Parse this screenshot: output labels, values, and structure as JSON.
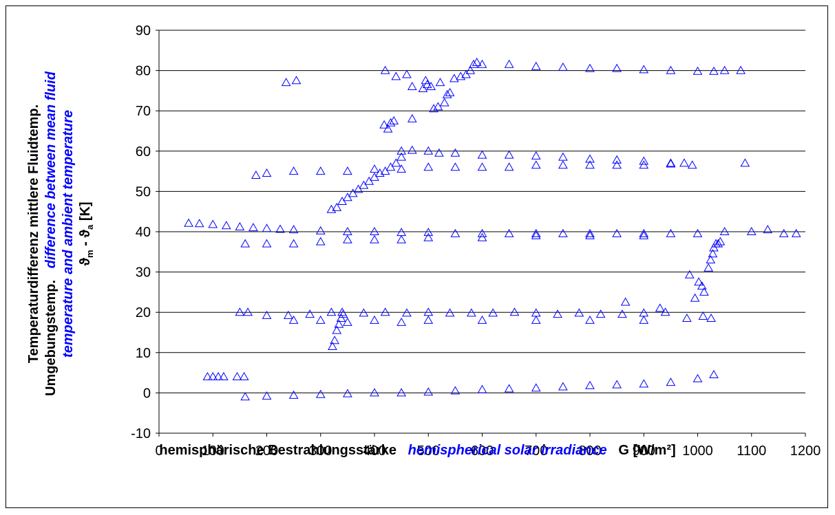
{
  "chart_data": {
    "type": "scatter",
    "xlabel_de": "hemisphärische Bestrahlungsstärke",
    "xlabel_en": "hemispherical solar irradiance",
    "xlabel_unit": "G [W/m²]",
    "ylabel_de_line1": "Temperaturdifferenz mittlere Fluidtemp.",
    "ylabel_de_line2": "Umgebungstemp.",
    "ylabel_en_line2": "difference between mean fluid",
    "ylabel_en_line3": "temperature and ambient temperature",
    "ylabel_symbol": "ϑ",
    "ylabel_sub_m": "m",
    "ylabel_sub_a": "a",
    "ylabel_sep": " - ",
    "ylabel_unit": " [K]",
    "xlim": [
      0,
      1200
    ],
    "ylim": [
      -10,
      90
    ],
    "xticks": [
      "0",
      "100",
      "200",
      "300",
      "400",
      "500",
      "600",
      "700",
      "800",
      "900",
      "1000",
      "1100",
      "1200"
    ],
    "yticks": [
      "-10",
      "0",
      "10",
      "20",
      "30",
      "40",
      "50",
      "60",
      "70",
      "80",
      "90"
    ],
    "grid": "horizontal",
    "marker": "triangle-open",
    "marker_color": "#0000ff",
    "series": [
      {
        "points": [
          [
            160,
            -1
          ],
          [
            200,
            -0.8
          ],
          [
            250,
            -0.6
          ],
          [
            300,
            -0.4
          ],
          [
            350,
            -0.2
          ],
          [
            400,
            0
          ],
          [
            450,
            0
          ],
          [
            500,
            0.2
          ],
          [
            550,
            0.5
          ],
          [
            600,
            0.8
          ],
          [
            650,
            1
          ],
          [
            700,
            1.2
          ],
          [
            750,
            1.5
          ],
          [
            800,
            1.8
          ],
          [
            850,
            2
          ],
          [
            900,
            2.2
          ],
          [
            950,
            2.6
          ],
          [
            1000,
            3.5
          ],
          [
            1030,
            4.5
          ],
          [
            90,
            4
          ],
          [
            100,
            4
          ],
          [
            110,
            4
          ],
          [
            120,
            4
          ],
          [
            145,
            4
          ],
          [
            158,
            4
          ],
          [
            150,
            20
          ],
          [
            165,
            20
          ],
          [
            200,
            19.2
          ],
          [
            240,
            19.2
          ],
          [
            280,
            19.5
          ],
          [
            320,
            20
          ],
          [
            340,
            20
          ],
          [
            380,
            19.8
          ],
          [
            420,
            20
          ],
          [
            460,
            19.8
          ],
          [
            500,
            20
          ],
          [
            540,
            19.8
          ],
          [
            580,
            19.8
          ],
          [
            620,
            19.8
          ],
          [
            660,
            20
          ],
          [
            700,
            19.8
          ],
          [
            740,
            19.5
          ],
          [
            780,
            19.8
          ],
          [
            820,
            19.5
          ],
          [
            860,
            19.5
          ],
          [
            900,
            19.8
          ],
          [
            940,
            20
          ],
          [
            980,
            18.5
          ],
          [
            1010,
            19
          ],
          [
            1025,
            18.5
          ],
          [
            250,
            18
          ],
          [
            300,
            18
          ],
          [
            350,
            17.5
          ],
          [
            400,
            18
          ],
          [
            450,
            17.5
          ],
          [
            500,
            18
          ],
          [
            600,
            18
          ],
          [
            700,
            18
          ],
          [
            800,
            18
          ],
          [
            900,
            18
          ],
          [
            322,
            11.5
          ],
          [
            326,
            13
          ],
          [
            330,
            15.5
          ],
          [
            334,
            17
          ],
          [
            338,
            18.5
          ],
          [
            342,
            19.5
          ],
          [
            866,
            22.5
          ],
          [
            930,
            21
          ],
          [
            55,
            42.1
          ],
          [
            75,
            42
          ],
          [
            100,
            41.8
          ],
          [
            125,
            41.5
          ],
          [
            150,
            41.2
          ],
          [
            175,
            41
          ],
          [
            200,
            40.8
          ],
          [
            225,
            40.6
          ],
          [
            250,
            40.5
          ],
          [
            300,
            40.2
          ],
          [
            350,
            40
          ],
          [
            400,
            40
          ],
          [
            450,
            39.8
          ],
          [
            500,
            39.8
          ],
          [
            550,
            39.5
          ],
          [
            600,
            39.5
          ],
          [
            650,
            39.5
          ],
          [
            700,
            39.5
          ],
          [
            750,
            39.5
          ],
          [
            800,
            39.5
          ],
          [
            850,
            39.5
          ],
          [
            900,
            39.5
          ],
          [
            950,
            39.5
          ],
          [
            1000,
            39.5
          ],
          [
            1050,
            40
          ],
          [
            1100,
            40
          ],
          [
            1130,
            40.5
          ],
          [
            1160,
            39.5
          ],
          [
            1183,
            39.5
          ],
          [
            160,
            37
          ],
          [
            200,
            37
          ],
          [
            250,
            37
          ],
          [
            300,
            37.5
          ],
          [
            350,
            38
          ],
          [
            400,
            38
          ],
          [
            450,
            38
          ],
          [
            500,
            38.5
          ],
          [
            600,
            38.5
          ],
          [
            700,
            39
          ],
          [
            800,
            39
          ],
          [
            900,
            39
          ],
          [
            985,
            29.3
          ],
          [
            995,
            23.5
          ],
          [
            1002,
            27.5
          ],
          [
            1008,
            26.5
          ],
          [
            1012,
            25
          ],
          [
            1020,
            31
          ],
          [
            1024,
            33
          ],
          [
            1028,
            34.5
          ],
          [
            1030,
            36
          ],
          [
            1034,
            37
          ],
          [
            1038,
            37
          ],
          [
            1042,
            37.5
          ],
          [
            180,
            54
          ],
          [
            200,
            54.5
          ],
          [
            250,
            55
          ],
          [
            300,
            55
          ],
          [
            350,
            55
          ],
          [
            400,
            55.5
          ],
          [
            450,
            55.5
          ],
          [
            500,
            56
          ],
          [
            550,
            56
          ],
          [
            600,
            56
          ],
          [
            650,
            56
          ],
          [
            700,
            56.5
          ],
          [
            750,
            56.5
          ],
          [
            800,
            56.5
          ],
          [
            850,
            56.5
          ],
          [
            900,
            56.5
          ],
          [
            950,
            56.8
          ],
          [
            990,
            56.5
          ],
          [
            1088,
            57
          ],
          [
            450,
            60
          ],
          [
            470,
            60.2
          ],
          [
            500,
            60
          ],
          [
            520,
            59.5
          ],
          [
            550,
            59.5
          ],
          [
            600,
            59
          ],
          [
            650,
            59
          ],
          [
            700,
            58.8
          ],
          [
            750,
            58.5
          ],
          [
            800,
            58
          ],
          [
            850,
            57.8
          ],
          [
            900,
            57.5
          ],
          [
            950,
            57
          ],
          [
            975,
            57
          ],
          [
            320,
            45.5
          ],
          [
            330,
            46
          ],
          [
            340,
            47.5
          ],
          [
            350,
            48.5
          ],
          [
            360,
            49.5
          ],
          [
            370,
            50.5
          ],
          [
            380,
            51.5
          ],
          [
            390,
            52.5
          ],
          [
            400,
            53.5
          ],
          [
            410,
            54.5
          ],
          [
            420,
            55
          ],
          [
            430,
            56
          ],
          [
            440,
            57
          ],
          [
            450,
            58.5
          ],
          [
            418,
            66.5
          ],
          [
            425,
            65.5
          ],
          [
            430,
            67
          ],
          [
            436,
            67.5
          ],
          [
            470,
            68
          ],
          [
            440,
            78.5
          ],
          [
            460,
            79
          ],
          [
            470,
            76
          ],
          [
            490,
            75.5
          ],
          [
            495,
            77.5
          ],
          [
            498,
            76.5
          ],
          [
            505,
            76
          ],
          [
            510,
            70.5
          ],
          [
            518,
            71
          ],
          [
            522,
            77
          ],
          [
            530,
            72
          ],
          [
            535,
            74
          ],
          [
            540,
            74.5
          ],
          [
            548,
            78
          ],
          [
            560,
            78.5
          ],
          [
            570,
            79
          ],
          [
            578,
            80
          ],
          [
            584,
            81.5
          ],
          [
            590,
            82
          ],
          [
            600,
            81.5
          ],
          [
            650,
            81.5
          ],
          [
            700,
            81
          ],
          [
            750,
            80.8
          ],
          [
            800,
            80.5
          ],
          [
            850,
            80.5
          ],
          [
            900,
            80.2
          ],
          [
            950,
            80
          ],
          [
            1000,
            79.8
          ],
          [
            1030,
            79.8
          ],
          [
            1050,
            80
          ],
          [
            1080,
            80
          ],
          [
            236,
            77
          ],
          [
            255,
            77.5
          ],
          [
            420,
            80
          ]
        ]
      }
    ]
  }
}
